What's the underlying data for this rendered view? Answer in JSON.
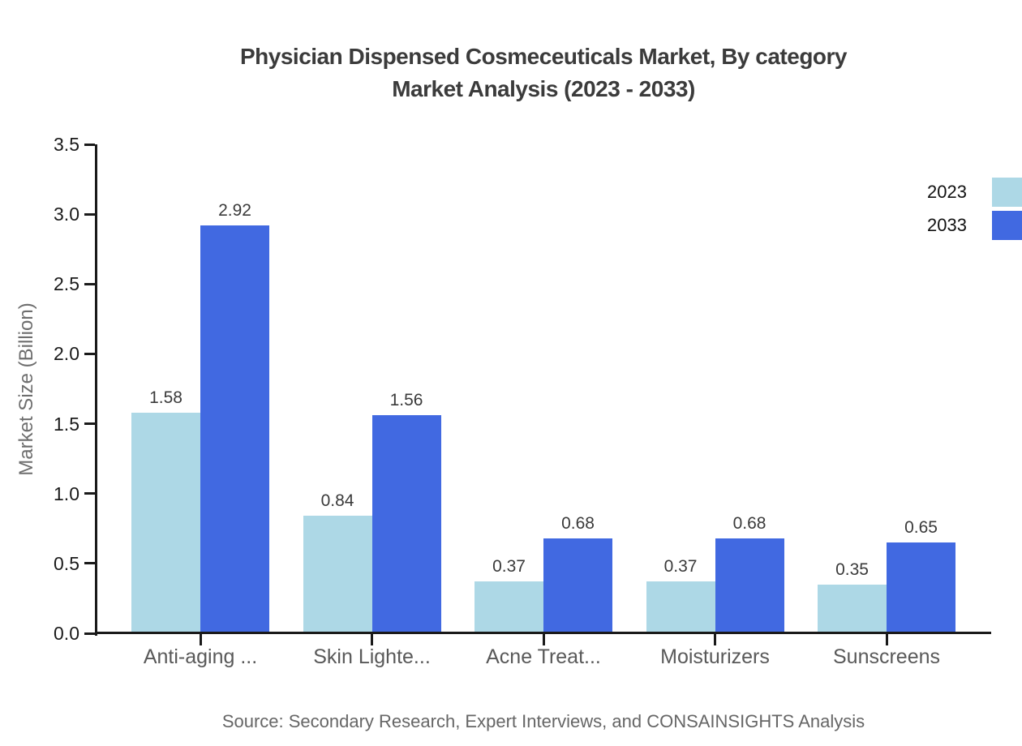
{
  "page": {
    "title_line1": "Physician Dispensed Cosmeceuticals Market, By category",
    "title_line2": "Market Analysis (2023 - 2033)",
    "source_note": "Source: Secondary Research, Expert Interviews, and CONSAINSIGHTS Analysis"
  },
  "chart_data": {
    "type": "bar",
    "title": "Physician Dispensed Cosmeceuticals Market, By category Market Analysis (2023 - 2033)",
    "xlabel": "",
    "ylabel": "Market Size (Billion)",
    "categories": [
      "Anti-aging ...",
      "Skin Lighte...",
      "Acne Treat...",
      "Moisturizers",
      "Sunscreens"
    ],
    "series": [
      {
        "name": "2023",
        "color": "#ADD8E6",
        "values": [
          1.58,
          0.84,
          0.37,
          0.37,
          0.35
        ]
      },
      {
        "name": "2033",
        "color": "#4169E1",
        "values": [
          2.92,
          1.56,
          0.68,
          0.68,
          0.65
        ]
      }
    ],
    "ylim": [
      0,
      3.5
    ],
    "yticks": [
      0,
      0.5,
      1,
      1.5,
      2,
      2.5,
      3,
      3.5
    ],
    "ytick_labels": [
      "0.0",
      "0.5",
      "1.0",
      "1.5",
      "2.0",
      "2.5",
      "3.0",
      "3.5"
    ],
    "value_decimals": 2,
    "bar_value_labels": true,
    "grid": false,
    "legend_position": "top-right",
    "axis_color": "#1a1a1a"
  }
}
